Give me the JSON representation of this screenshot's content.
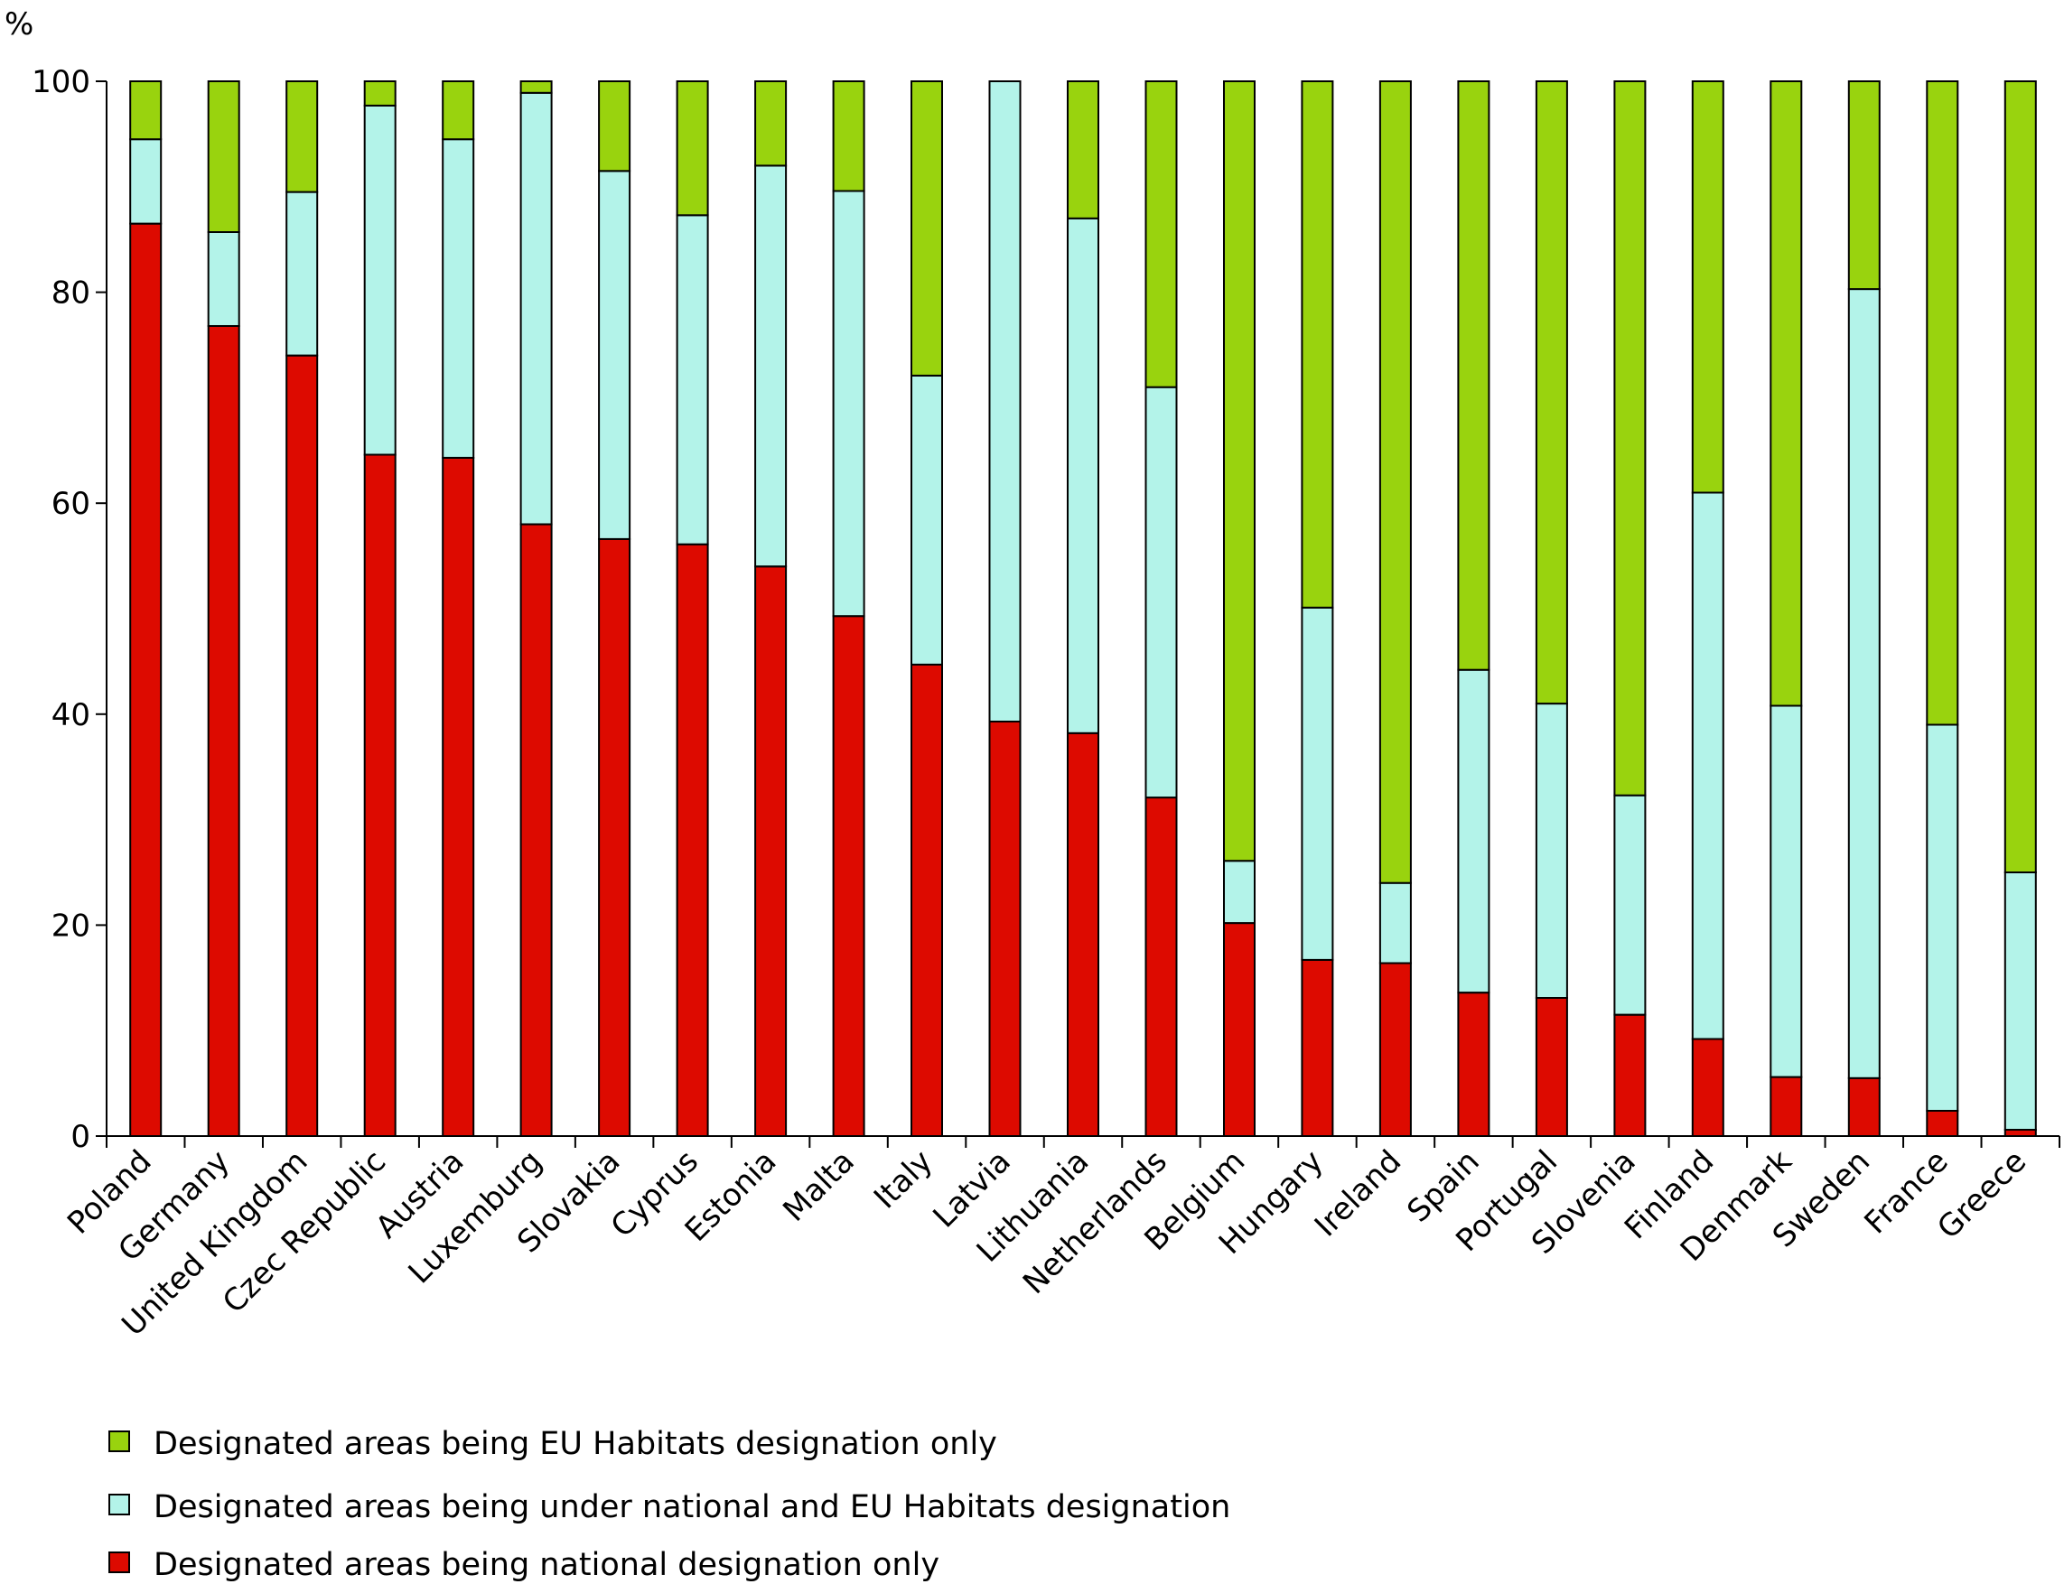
{
  "chart_data": {
    "type": "bar",
    "stacked": true,
    "ylabel": "%",
    "ylim": [
      0,
      100
    ],
    "yticks": [
      0,
      20,
      40,
      60,
      80,
      100
    ],
    "grid": false,
    "legend_position": "bottom-left",
    "categories": [
      "Poland",
      "Germany",
      "United Kingdom",
      "Czec Republic",
      "Austria",
      "Luxemburg",
      "Slovakia",
      "Cyprus",
      "Estonia",
      "Malta",
      "Italy",
      "Latvia",
      "Lithuania",
      "Netherlands",
      "Belgium",
      "Hungary",
      "Ireland",
      "Spain",
      "Portugal",
      "Slovenia",
      "Finland",
      "Denmark",
      "Sweden",
      "France",
      "Greece"
    ],
    "series": [
      {
        "name": "Designated areas being national designation only",
        "color": "#dd0a00",
        "values": [
          86.5,
          76.8,
          74.0,
          64.6,
          64.3,
          58.0,
          56.6,
          56.1,
          54.0,
          49.3,
          44.7,
          39.3,
          38.2,
          32.1,
          20.2,
          16.7,
          16.4,
          13.6,
          13.1,
          11.5,
          9.2,
          5.6,
          5.5,
          2.4,
          0.6
        ]
      },
      {
        "name": "Designated areas being under national and EU Habitats designation",
        "color": "#b3f3e9",
        "values": [
          8.0,
          8.9,
          15.5,
          33.1,
          30.2,
          40.9,
          34.9,
          31.2,
          38.0,
          40.3,
          27.4,
          60.7,
          48.8,
          38.9,
          5.9,
          33.4,
          7.6,
          30.6,
          27.9,
          20.8,
          51.8,
          35.2,
          74.8,
          36.6,
          24.4
        ]
      },
      {
        "name": "Designated areas being EU Habitats designation only",
        "color": "#99d30e",
        "values": [
          5.5,
          14.3,
          10.5,
          2.3,
          5.5,
          1.1,
          8.5,
          12.7,
          8.0,
          10.4,
          27.9,
          0.0,
          13.0,
          29.0,
          73.9,
          49.9,
          76.0,
          55.8,
          59.0,
          67.7,
          39.0,
          59.2,
          19.7,
          61.0,
          75.0
        ]
      }
    ],
    "legend": [
      {
        "label": "Designated areas being EU Habitats designation only",
        "color": "#99d30e"
      },
      {
        "label": "Designated areas being under national and EU Habitats designation",
        "color": "#b3f3e9"
      },
      {
        "label": "Designated areas being national designation only",
        "color": "#dd0a00"
      }
    ]
  }
}
